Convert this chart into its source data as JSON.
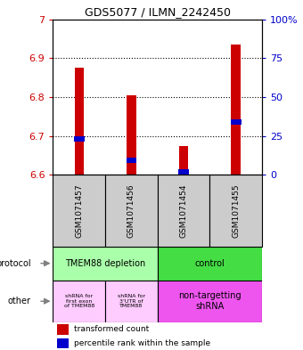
{
  "title": "GDS5077 / ILMN_2242450",
  "samples": [
    "GSM1071457",
    "GSM1071456",
    "GSM1071454",
    "GSM1071455"
  ],
  "red_values": [
    6.875,
    6.805,
    6.675,
    6.935
  ],
  "blue_values": [
    6.693,
    6.638,
    6.608,
    6.735
  ],
  "ylim_left": [
    6.6,
    7.0
  ],
  "yticks_left": [
    6.6,
    6.7,
    6.8,
    6.9,
    7.0
  ],
  "ytick_labels_left": [
    "6.6",
    "6.7",
    "6.8",
    "6.9",
    "7"
  ],
  "yticks_right_vals": [
    0,
    25,
    50,
    75,
    100
  ],
  "ytick_labels_right": [
    "0",
    "25",
    "50",
    "75",
    "100%"
  ],
  "bar_width": 0.18,
  "red_color": "#cc0000",
  "blue_color": "#0000cc",
  "protocol_label_left": "TMEM88 depletion",
  "protocol_label_right": "control",
  "protocol_color_left": "#aaffaa",
  "protocol_color_right": "#44dd44",
  "other_label_0": "shRNA for\nfirst exon\nof TMEM88",
  "other_label_1": "shRNA for\n3'UTR of\nTMEM88",
  "other_label_2": "non-targetting\nshRNA",
  "other_color_small": "#ffccff",
  "other_color_large": "#ee55ee",
  "sample_bg_color": "#cccccc",
  "legend_red_label": "transformed count",
  "legend_blue_label": "percentile rank within the sample",
  "protocol_row_label": "protocol",
  "other_row_label": "other"
}
